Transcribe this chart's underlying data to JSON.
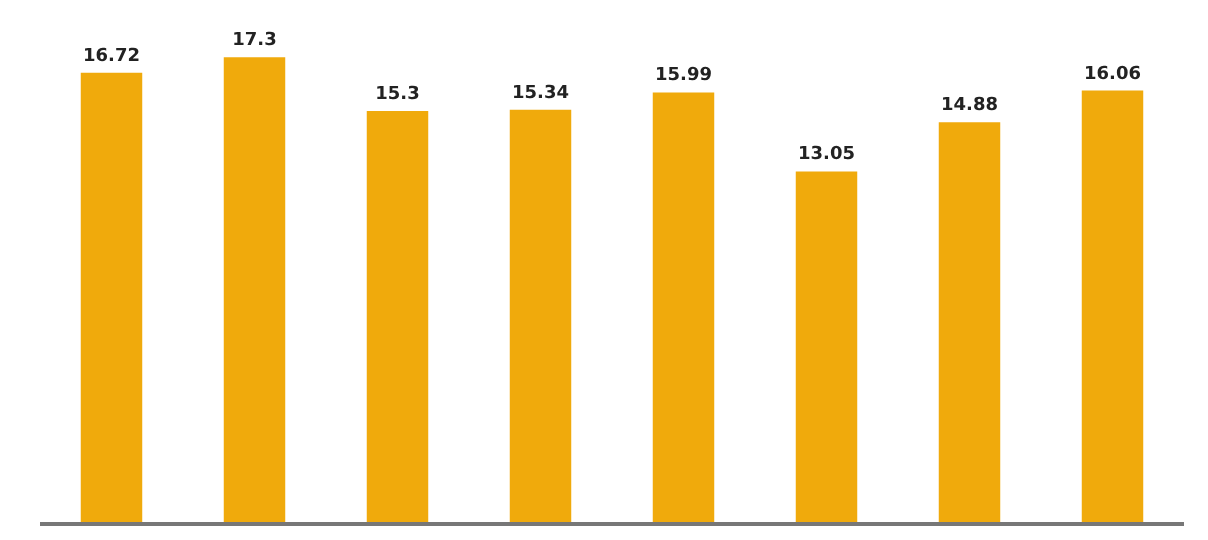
{
  "chart_data": {
    "type": "bar",
    "categories": [
      null,
      null,
      null,
      null,
      null,
      null,
      null,
      null
    ],
    "values": [
      16.72,
      17.3,
      15.3,
      15.34,
      15.99,
      13.05,
      14.88,
      16.06
    ],
    "color": "#f0aa0c",
    "data_labels": true,
    "tick_labels": false
  }
}
